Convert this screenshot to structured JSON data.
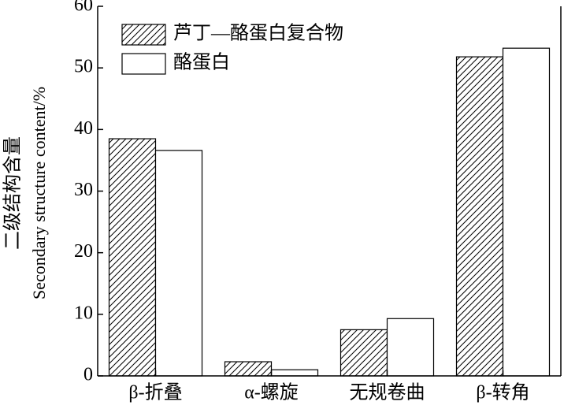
{
  "chart_data": {
    "type": "bar",
    "y_label": [
      "二级结构含量",
      "Secondary structure content/%"
    ],
    "categories": [
      "β-折叠",
      "α-螺旋",
      "无规卷曲",
      "β-转角"
    ],
    "series": [
      {
        "name": "芦丁—酪蛋白复合物",
        "color": "#ffffff",
        "hatch": true,
        "values": [
          38.5,
          2.3,
          7.5,
          51.8
        ]
      },
      {
        "name": "酪蛋白",
        "color": "#ffffff",
        "hatch": false,
        "values": [
          36.6,
          1.0,
          9.3,
          53.2
        ]
      }
    ],
    "ylim": [
      0,
      60
    ],
    "yticks": [
      0,
      10,
      20,
      30,
      40,
      50,
      60
    ],
    "legend": "upper left"
  }
}
